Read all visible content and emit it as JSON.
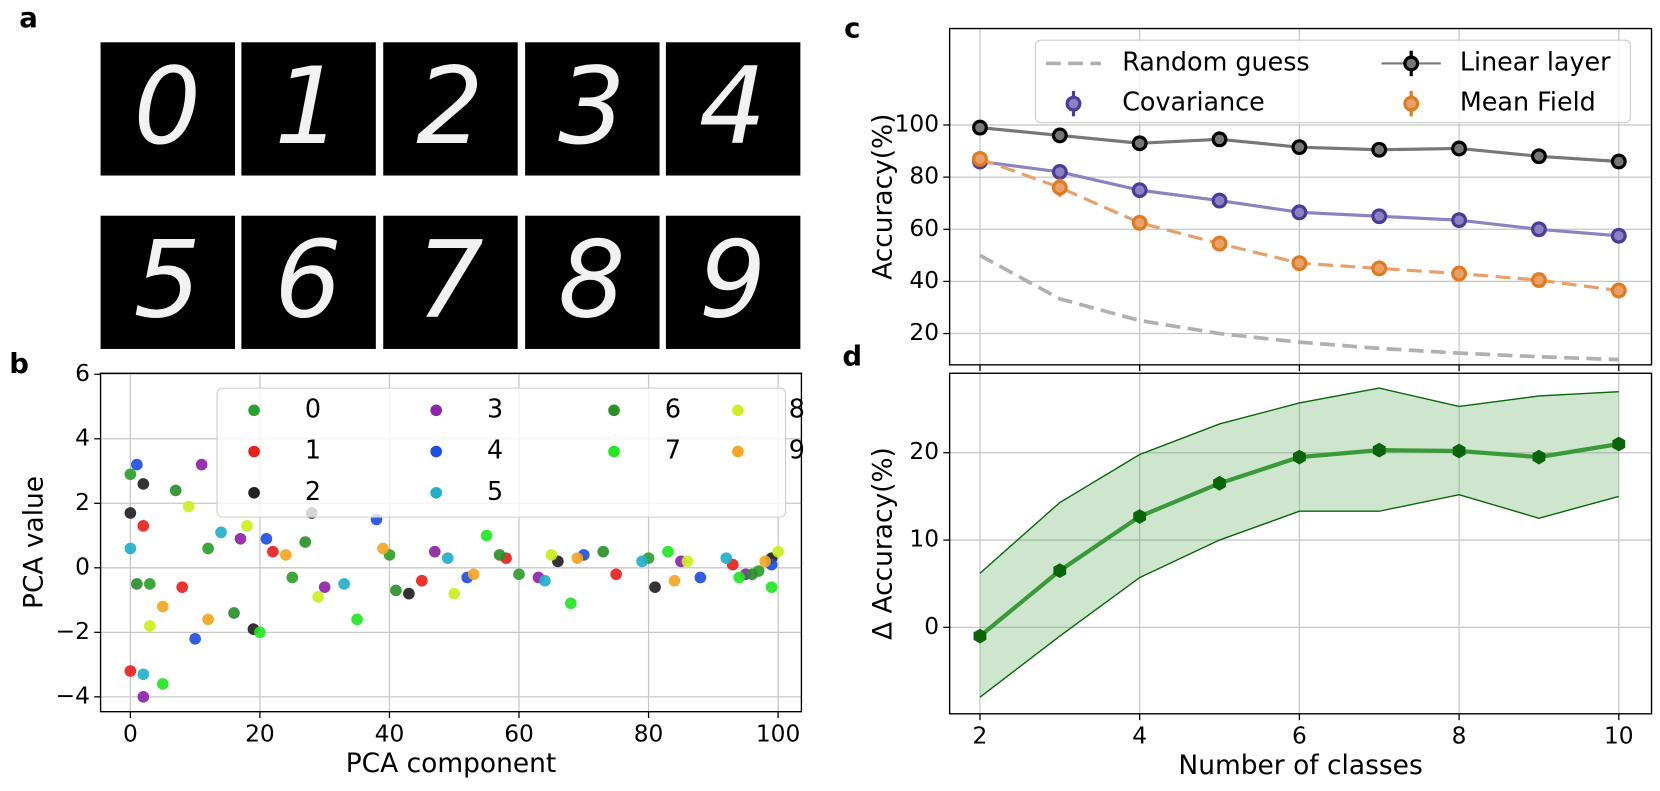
{
  "panel_labels": [
    "a",
    "b",
    "c",
    "d"
  ],
  "digits": [
    "0",
    "1",
    "2",
    "3",
    "4",
    "5",
    "6",
    "7",
    "8",
    "9"
  ],
  "chart_data": [
    {
      "type": "scatter",
      "xlabel": "PCA component",
      "ylabel": "PCA value",
      "xlim": [
        -4.6,
        103.6
      ],
      "ylim": [
        -4.46,
        6.03
      ],
      "xticks": [
        0,
        20,
        40,
        60,
        80,
        100
      ],
      "yticks": [
        {
          "value": -4,
          "label": "−4"
        },
        {
          "value": -2,
          "label": "−2"
        },
        0,
        2,
        4,
        6
      ],
      "grid": true,
      "legend_columns": 4,
      "series": [
        {
          "name": "0",
          "color": "#2ca02c",
          "x": [
            0,
            3,
            12,
            25,
            40,
            60,
            80,
            97
          ],
          "y": [
            2.9,
            -0.5,
            0.6,
            -0.3,
            0.4,
            -0.2,
            0.3,
            -0.1
          ]
        },
        {
          "name": "1",
          "color": "#e8211c",
          "x": [
            0,
            2,
            8,
            22,
            45,
            58,
            75,
            93
          ],
          "y": [
            -3.2,
            1.3,
            -0.6,
            0.5,
            -0.4,
            0.3,
            -0.2,
            0.1
          ]
        },
        {
          "name": "2",
          "color": "#222222",
          "x": [
            0,
            2,
            19,
            28,
            43,
            66,
            81,
            99
          ],
          "y": [
            1.7,
            2.6,
            -1.9,
            1.7,
            -0.8,
            0.2,
            -0.6,
            0.3
          ]
        },
        {
          "name": "3",
          "color": "#8e24aa",
          "x": [
            2,
            11,
            17,
            30,
            47,
            63,
            85,
            95
          ],
          "y": [
            -4,
            3.2,
            0.9,
            -0.6,
            0.5,
            -0.3,
            0.2,
            -0.2
          ]
        },
        {
          "name": "4",
          "color": "#1f4fe0",
          "x": [
            1,
            10,
            21,
            38,
            52,
            70,
            88,
            99
          ],
          "y": [
            3.2,
            -2.2,
            0.9,
            1.5,
            -0.3,
            0.4,
            -0.3,
            0.1
          ]
        },
        {
          "name": "5",
          "color": "#1fb0c8",
          "x": [
            0,
            2,
            14,
            33,
            49,
            64,
            79,
            92
          ],
          "y": [
            0.6,
            -3.3,
            1.1,
            -0.5,
            0.3,
            -0.4,
            0.2,
            0.3
          ]
        },
        {
          "name": "6",
          "color": "#2a8f2a",
          "x": [
            1,
            7,
            16,
            27,
            41,
            57,
            73,
            96
          ],
          "y": [
            -0.5,
            2.4,
            -1.4,
            0.8,
            -0.7,
            0.4,
            0.5,
            -0.2
          ]
        },
        {
          "name": "7",
          "color": "#22e622",
          "x": [
            5,
            20,
            35,
            55,
            68,
            83,
            94,
            99
          ],
          "y": [
            -3.6,
            -2,
            -1.6,
            1,
            -1.1,
            0.5,
            -0.3,
            -0.6
          ]
        },
        {
          "name": "8",
          "color": "#ccee22",
          "x": [
            3,
            9,
            18,
            29,
            50,
            65,
            86,
            100
          ],
          "y": [
            -1.8,
            1.9,
            1.3,
            -0.9,
            -0.8,
            0.4,
            0.2,
            0.5
          ]
        },
        {
          "name": "9",
          "color": "#f5a623",
          "x": [
            5,
            12,
            24,
            39,
            53,
            69,
            84,
            98
          ],
          "y": [
            -1.2,
            -1.6,
            0.4,
            0.6,
            -0.2,
            0.3,
            -0.4,
            0.2
          ]
        }
      ]
    },
    {
      "type": "line",
      "ylabel": "Accuracy(%)",
      "x": [
        2,
        3,
        4,
        5,
        6,
        7,
        8,
        9,
        10
      ],
      "xlim": [
        1.62,
        10.41
      ],
      "ylim": [
        8,
        137
      ],
      "xticks": [
        2,
        4,
        6,
        8,
        10
      ],
      "xticklabels": false,
      "yticks": [
        20,
        40,
        60,
        80,
        100
      ],
      "grid": true,
      "series": [
        {
          "name": "Random guess",
          "color": "#b0b0b0",
          "linestyle": "dashed",
          "values": [
            50,
            33.3,
            25,
            20,
            16.7,
            14.3,
            12.5,
            11.1,
            10
          ]
        },
        {
          "name": "Linear layer",
          "color": "#777777",
          "edgecolor": "#000000",
          "values": [
            99,
            96,
            93,
            94.5,
            91.5,
            90.5,
            91,
            88,
            86
          ],
          "errors": [
            1,
            1,
            1,
            1,
            1,
            1,
            1,
            1,
            1
          ]
        },
        {
          "name": "Covariance",
          "color": "#8b82c0",
          "edgecolor": "#4b3c9c",
          "values": [
            86,
            82,
            75,
            71,
            66.5,
            65,
            63.5,
            60,
            57.5
          ],
          "errors": [
            3,
            3,
            2.8,
            2.5,
            2.5,
            2.5,
            2,
            2.5,
            2
          ]
        },
        {
          "name": "Mean Field",
          "color": "#e8a06a",
          "edgecolor": "#e07b20",
          "linestyle": "dashed",
          "values": [
            87,
            76,
            62.5,
            54.5,
            47,
            45,
            43,
            40.5,
            36.5
          ],
          "errors": [
            3,
            3.5,
            3,
            3,
            2.5,
            3,
            2,
            2.5,
            2
          ]
        }
      ]
    },
    {
      "type": "band",
      "xlabel": "Number of classes",
      "ylabel": "Δ Accuracy(%)",
      "x": [
        2,
        3,
        4,
        5,
        6,
        7,
        8,
        9,
        10
      ],
      "xlim": [
        1.62,
        10.41
      ],
      "ylim": [
        -9.9,
        29.1
      ],
      "xticks": [
        2,
        4,
        6,
        8,
        10
      ],
      "yticks": [
        0,
        10,
        20
      ],
      "grid": true,
      "series": [
        {
          "color": "#3a9a3a",
          "edgecolor": "#0a640a",
          "values": [
            -1,
            6.5,
            12.7,
            16.5,
            19.5,
            20.3,
            20.2,
            19.5,
            21
          ],
          "lower": [
            -8,
            -1,
            5.7,
            10,
            13.3,
            13.3,
            15.2,
            12.5,
            15
          ],
          "upper": [
            6.2,
            14.3,
            19.8,
            23.3,
            25.7,
            27.4,
            25.3,
            26.5,
            27
          ]
        }
      ]
    }
  ]
}
